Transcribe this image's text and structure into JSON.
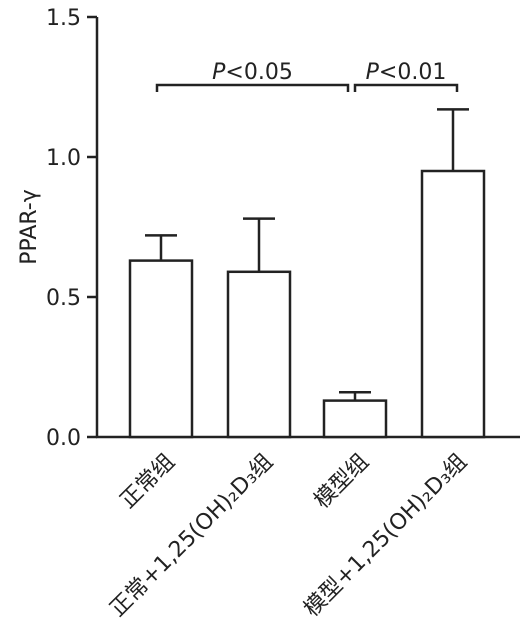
{
  "chart_data": {
    "type": "bar",
    "categories": [
      "正常组",
      "正常+1,25(OH)₂D₃组",
      "模型组",
      "模型+1,25(OH)₂D₃组"
    ],
    "series": [
      {
        "values": [
          0.63,
          0.59,
          0.13,
          0.95
        ],
        "errors": [
          0.09,
          0.19,
          0.03,
          0.22
        ]
      }
    ],
    "ylabel": "PPAR-γ",
    "xlabel": "",
    "ylim": [
      0,
      1.5
    ],
    "yticks": [
      "0.0",
      "0.5",
      "1.0",
      "1.5"
    ],
    "annotations": [
      {
        "text_italic": "P",
        "text": "<0.05",
        "from": 0,
        "to": 2
      },
      {
        "text_italic": "P",
        "text": "<0.01",
        "from": 2,
        "to": 3
      }
    ],
    "grid": false,
    "legend": "none"
  }
}
